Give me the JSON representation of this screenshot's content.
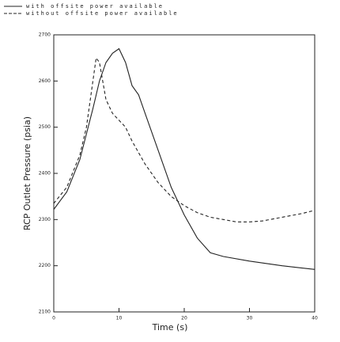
{
  "chart_data": {
    "type": "line",
    "xlabel": "Time  (s)",
    "ylabel": "RCP Outlet Pressure (psia)",
    "xlim": [
      0,
      40
    ],
    "xticks": [
      0,
      10,
      20,
      30,
      40
    ],
    "ylim": [
      2100,
      2700
    ],
    "yticks": [
      2100,
      2200,
      2300,
      2400,
      2500,
      2600,
      2700
    ],
    "series": [
      {
        "name": "with offsite power available",
        "color": "#222222",
        "dash": "solid",
        "x": [
          0,
          2,
          4,
          6,
          7,
          8,
          9,
          10,
          11,
          12,
          13,
          14,
          16,
          18,
          20,
          22,
          24,
          26,
          30,
          35,
          40
        ],
        "values": [
          2322,
          2360,
          2430,
          2540,
          2600,
          2640,
          2660,
          2670,
          2640,
          2590,
          2570,
          2530,
          2450,
          2370,
          2310,
          2260,
          2228,
          2220,
          2210,
          2200,
          2192
        ]
      },
      {
        "name": "without offsite power available",
        "color": "#222222",
        "dash": "dashed",
        "x": [
          0,
          2,
          4,
          5,
          6,
          6.5,
          7,
          8,
          9,
          10,
          11,
          12,
          14,
          16,
          18,
          20,
          22,
          24,
          26,
          28,
          30,
          32,
          35,
          38,
          40
        ],
        "values": [
          2335,
          2370,
          2440,
          2500,
          2600,
          2650,
          2640,
          2560,
          2530,
          2515,
          2500,
          2470,
          2420,
          2380,
          2350,
          2330,
          2315,
          2305,
          2300,
          2295,
          2295,
          2297,
          2305,
          2313,
          2320
        ]
      }
    ]
  }
}
